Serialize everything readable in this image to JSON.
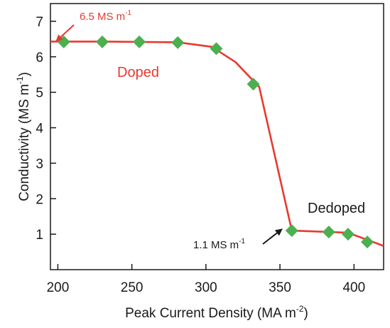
{
  "chart_data": {
    "type": "line",
    "xlabel": "Peak Current Density (MA m",
    "xlabel_sup": "-2",
    "xlabel_close": ")",
    "ylabel": "Conductivity (MS m",
    "ylabel_sup": "-1",
    "ylabel_close": ")",
    "xlim": [
      195,
      420
    ],
    "ylim": [
      0,
      7.5
    ],
    "xticks": [
      200,
      250,
      300,
      350,
      400
    ],
    "yticks": [
      1,
      2,
      3,
      4,
      5,
      6,
      7
    ],
    "grid": false,
    "legend": "none",
    "series": [
      {
        "type": "scatter",
        "marker": "diamond",
        "color": "#4caf50",
        "x": [
          204,
          230,
          255,
          281,
          307,
          332,
          358,
          383,
          396,
          409
        ],
        "y": [
          6.42,
          6.42,
          6.42,
          6.4,
          6.23,
          5.23,
          1.1,
          1.06,
          1.0,
          0.78
        ]
      },
      {
        "type": "line",
        "color": "#e8392f",
        "x": [
          195,
          230,
          281,
          304,
          320,
          336,
          358,
          396,
          420
        ],
        "y": [
          6.43,
          6.43,
          6.41,
          6.28,
          5.85,
          5.15,
          1.1,
          1.04,
          0.67
        ]
      }
    ],
    "annotations": {
      "doped": "Doped",
      "dedoped": "Dedoped",
      "high_value": "6.5 MS m",
      "high_value_sup": "-1",
      "low_value": "1.1 MS m",
      "low_value_sup": "-1"
    },
    "colors": {
      "axis": "#1a1a1a",
      "fit_line": "#e8392f",
      "markers": "#4caf50",
      "annotation_red": "#e8392f",
      "annotation_dark": "#1a1a1a"
    }
  }
}
